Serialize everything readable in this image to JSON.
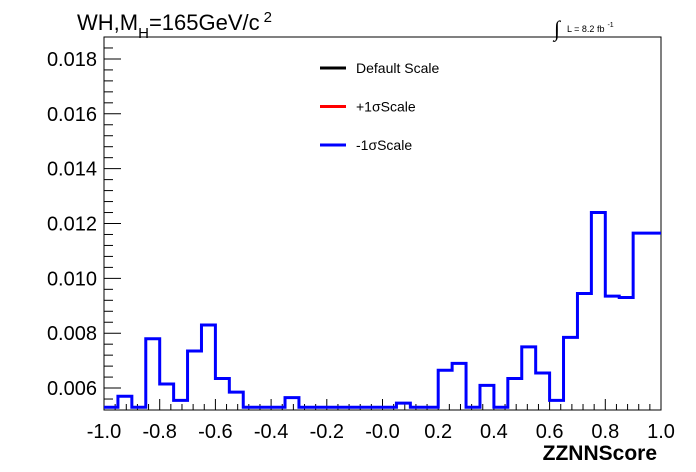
{
  "chart_data": {
    "type": "line",
    "title": "WH,M",
    "title_subscript": "H",
    "title_rest": "=165GeV/c",
    "title_superscript": "2",
    "luminosity_label": "L = 8.2 fb",
    "luminosity_superscript": "-1",
    "integral_symbol": "∫",
    "xlabel": "ZZNNScore",
    "ylabel": "",
    "xlim": [
      -1.0,
      1.0
    ],
    "ylim": [
      0.0052,
      0.0188
    ],
    "x_ticks": [
      "-1.0",
      "-0.8",
      "-0.6",
      "-0.4",
      "-0.2",
      "-0.0",
      "0.2",
      "0.4",
      "0.6",
      "0.8",
      "1.0"
    ],
    "y_ticks": [
      "0.006",
      "0.008",
      "0.010",
      "0.012",
      "0.014",
      "0.016",
      "0.018"
    ],
    "grid": false,
    "legend_position": "top-center",
    "legend": [
      {
        "name": "Default Scale",
        "color": "#000000"
      },
      {
        "name": "+1σScale",
        "color": "#ff0000"
      },
      {
        "name": "-1σScale",
        "color": "#0000ff"
      }
    ],
    "series": [
      {
        "name": "-1σScale",
        "color": "#0000ff",
        "bin_edges": [
          -1.0,
          -0.95,
          -0.9,
          -0.85,
          -0.8,
          -0.75,
          -0.7,
          -0.65,
          -0.6,
          -0.55,
          -0.5,
          -0.45,
          -0.4,
          -0.35,
          -0.3,
          -0.25,
          -0.2,
          -0.15,
          -0.1,
          -0.05,
          0.0,
          0.05,
          0.1,
          0.15,
          0.2,
          0.25,
          0.3,
          0.35,
          0.4,
          0.45,
          0.5,
          0.55,
          0.6,
          0.65,
          0.7,
          0.75,
          0.8,
          0.85,
          0.9,
          0.95,
          1.0
        ],
        "values": [
          0.0053,
          0.0057,
          0.0053,
          0.0078,
          0.00615,
          0.00555,
          0.00735,
          0.0083,
          0.00635,
          0.00585,
          0.0053,
          0.0053,
          0.0053,
          0.00565,
          0.0053,
          0.0053,
          0.0053,
          0.0053,
          0.0053,
          0.0053,
          0.0053,
          0.00545,
          0.0053,
          0.0053,
          0.00665,
          0.0069,
          0.0053,
          0.0061,
          0.0053,
          0.00635,
          0.0075,
          0.00655,
          0.00555,
          0.00785,
          0.00945,
          0.0124,
          0.00935,
          0.0093,
          0.01165,
          0.01165
        ]
      }
    ]
  },
  "colors": {
    "background": "#ffffff",
    "axis": "#000000",
    "series_blue": "#0000ff"
  }
}
